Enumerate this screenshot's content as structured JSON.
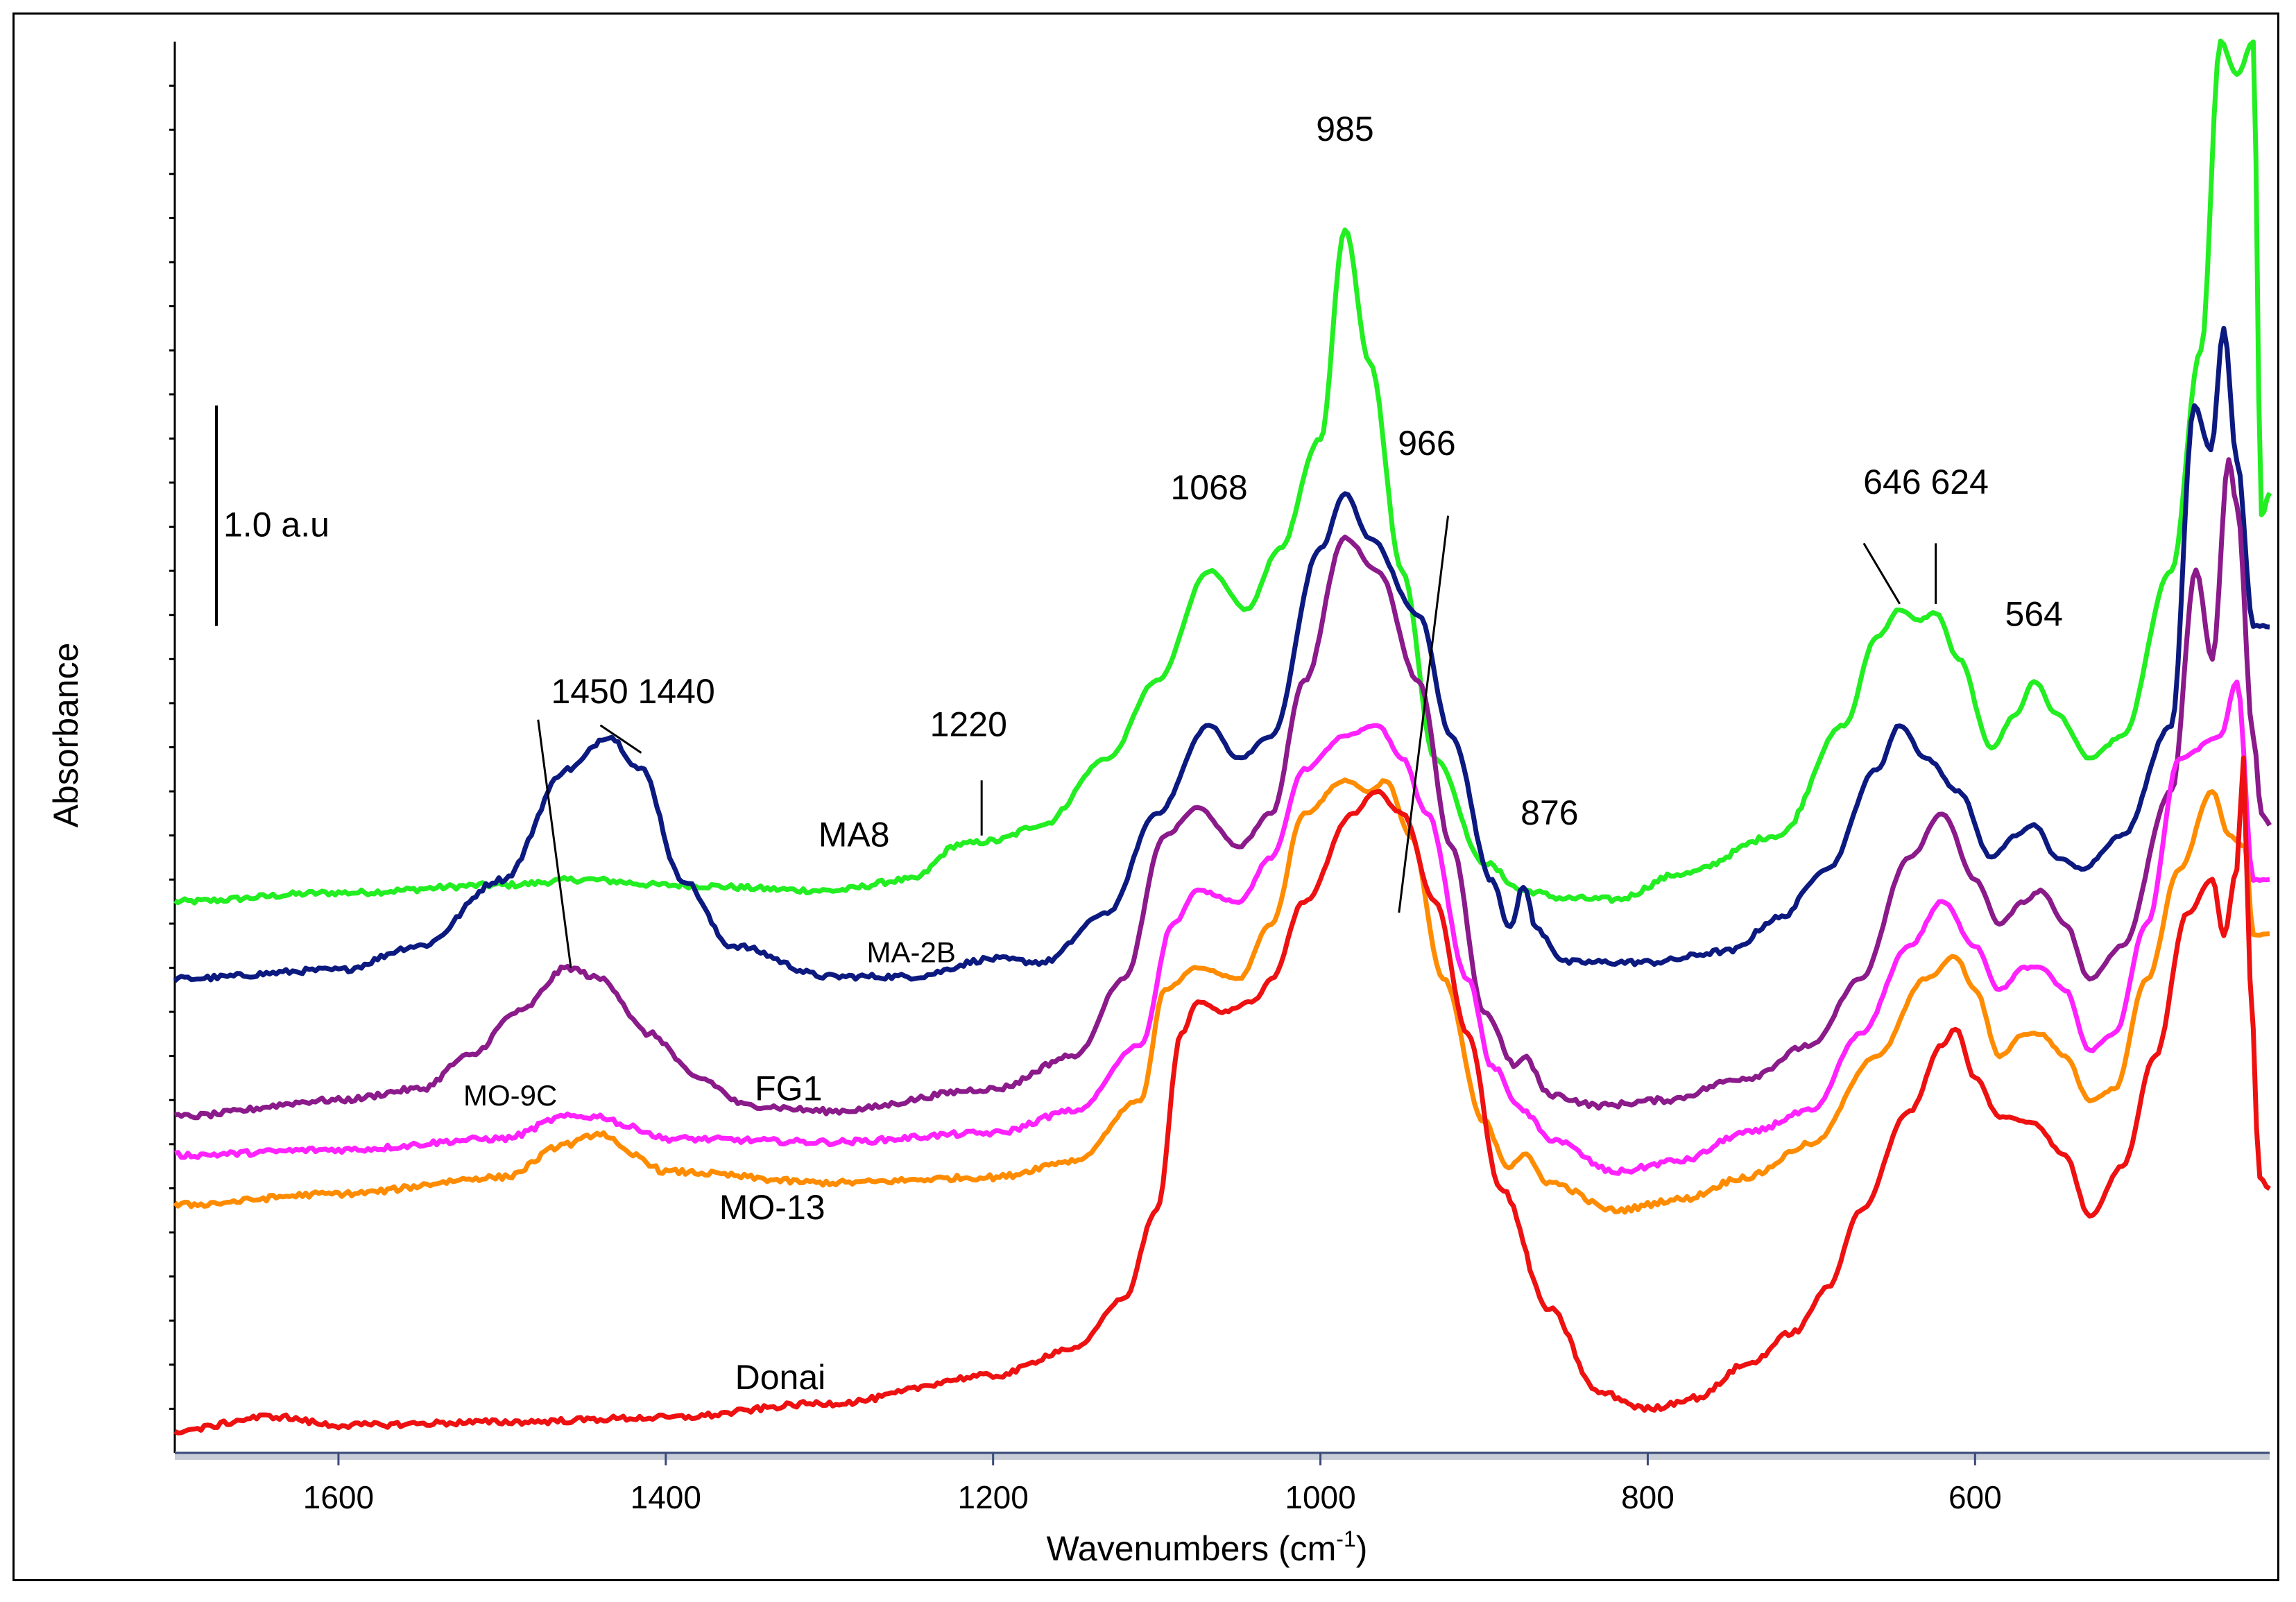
{
  "chart_data": {
    "type": "line",
    "title": "",
    "xlabel": "Wavenumbers (cm",
    "xlabel_sup": "-1",
    "xlabel_close": ")",
    "ylabel": "Absorbance",
    "x_reversed": true,
    "xlim": [
      1700,
      420
    ],
    "ylim": [
      0,
      12.8
    ],
    "x_ticks": [
      {
        "value": 1600,
        "label": "1600"
      },
      {
        "value": 1400,
        "label": "1400"
      },
      {
        "value": 1200,
        "label": "1200"
      },
      {
        "value": 1000,
        "label": "1000"
      },
      {
        "value": 800,
        "label": "800"
      },
      {
        "value": 600,
        "label": "600"
      }
    ],
    "scale_bar": {
      "label": "1.0  a.u",
      "from": 7.5,
      "to": 9.5
    },
    "series": [
      {
        "name": "MA8",
        "color": "#22ee22",
        "points": [
          [
            1700,
            5.0
          ],
          [
            1600,
            5.08
          ],
          [
            1500,
            5.15
          ],
          [
            1450,
            5.2
          ],
          [
            1400,
            5.15
          ],
          [
            1300,
            5.1
          ],
          [
            1250,
            5.2
          ],
          [
            1220,
            5.52
          ],
          [
            1200,
            5.55
          ],
          [
            1170,
            5.7
          ],
          [
            1130,
            6.3
          ],
          [
            1100,
            7.0
          ],
          [
            1068,
            8.0
          ],
          [
            1045,
            7.65
          ],
          [
            1025,
            8.2
          ],
          [
            1000,
            9.2
          ],
          [
            985,
            11.1
          ],
          [
            970,
            9.9
          ],
          [
            950,
            8.0
          ],
          [
            930,
            6.3
          ],
          [
            900,
            5.35
          ],
          [
            876,
            5.1
          ],
          [
            850,
            5.03
          ],
          [
            820,
            5.02
          ],
          [
            780,
            5.25
          ],
          [
            720,
            5.6
          ],
          [
            680,
            6.6
          ],
          [
            660,
            7.4
          ],
          [
            646,
            7.65
          ],
          [
            635,
            7.55
          ],
          [
            624,
            7.62
          ],
          [
            610,
            7.2
          ],
          [
            590,
            6.4
          ],
          [
            575,
            6.7
          ],
          [
            564,
            7.0
          ],
          [
            550,
            6.7
          ],
          [
            530,
            6.3
          ],
          [
            510,
            6.5
          ],
          [
            480,
            8.0
          ],
          [
            462,
            10.0
          ],
          [
            450,
            12.8
          ],
          [
            440,
            12.5
          ],
          [
            430,
            12.8
          ],
          [
            425,
            8.5
          ],
          [
            420,
            8.7
          ]
        ]
      },
      {
        "name": "MA-2B",
        "color": "#0c1a80",
        "points": [
          [
            1700,
            4.3
          ],
          [
            1600,
            4.38
          ],
          [
            1550,
            4.6
          ],
          [
            1500,
            5.2
          ],
          [
            1460,
            6.2
          ],
          [
            1435,
            6.5
          ],
          [
            1415,
            6.2
          ],
          [
            1390,
            5.2
          ],
          [
            1360,
            4.6
          ],
          [
            1300,
            4.32
          ],
          [
            1250,
            4.32
          ],
          [
            1200,
            4.48
          ],
          [
            1170,
            4.45
          ],
          [
            1130,
            4.9
          ],
          [
            1100,
            5.8
          ],
          [
            1068,
            6.6
          ],
          [
            1050,
            6.3
          ],
          [
            1030,
            6.5
          ],
          [
            1000,
            8.2
          ],
          [
            985,
            8.7
          ],
          [
            970,
            8.3
          ],
          [
            940,
            7.6
          ],
          [
            920,
            6.5
          ],
          [
            895,
            5.2
          ],
          [
            884,
            4.75
          ],
          [
            876,
            5.15
          ],
          [
            868,
            4.75
          ],
          [
            850,
            4.45
          ],
          [
            800,
            4.45
          ],
          [
            750,
            4.55
          ],
          [
            720,
            4.85
          ],
          [
            690,
            5.3
          ],
          [
            660,
            6.2
          ],
          [
            646,
            6.6
          ],
          [
            630,
            6.3
          ],
          [
            610,
            6.0
          ],
          [
            590,
            5.4
          ],
          [
            575,
            5.6
          ],
          [
            564,
            5.7
          ],
          [
            550,
            5.4
          ],
          [
            535,
            5.3
          ],
          [
            510,
            5.6
          ],
          [
            480,
            6.6
          ],
          [
            466,
            9.5
          ],
          [
            456,
            9.1
          ],
          [
            448,
            10.2
          ],
          [
            440,
            9.0
          ],
          [
            430,
            7.5
          ],
          [
            420,
            7.5
          ]
        ]
      },
      {
        "name": "FG1",
        "color": "#8b1a8b",
        "points": [
          [
            1700,
            3.05
          ],
          [
            1600,
            3.2
          ],
          [
            1550,
            3.3
          ],
          [
            1520,
            3.6
          ],
          [
            1490,
            4.0
          ],
          [
            1460,
            4.4
          ],
          [
            1440,
            4.3
          ],
          [
            1410,
            3.8
          ],
          [
            1380,
            3.4
          ],
          [
            1350,
            3.15
          ],
          [
            1300,
            3.1
          ],
          [
            1200,
            3.3
          ],
          [
            1150,
            3.6
          ],
          [
            1120,
            4.3
          ],
          [
            1095,
            5.6
          ],
          [
            1075,
            5.85
          ],
          [
            1050,
            5.5
          ],
          [
            1030,
            5.8
          ],
          [
            1010,
            7.0
          ],
          [
            985,
            8.3
          ],
          [
            965,
            8.0
          ],
          [
            940,
            7.0
          ],
          [
            920,
            5.5
          ],
          [
            900,
            4.0
          ],
          [
            880,
            3.5
          ],
          [
            876,
            3.6
          ],
          [
            860,
            3.25
          ],
          [
            830,
            3.15
          ],
          [
            790,
            3.2
          ],
          [
            740,
            3.4
          ],
          [
            700,
            3.7
          ],
          [
            670,
            4.3
          ],
          [
            640,
            5.4
          ],
          [
            620,
            5.8
          ],
          [
            600,
            5.2
          ],
          [
            585,
            4.8
          ],
          [
            570,
            5.0
          ],
          [
            560,
            5.1
          ],
          [
            545,
            4.8
          ],
          [
            530,
            4.3
          ],
          [
            510,
            4.6
          ],
          [
            480,
            6.0
          ],
          [
            465,
            8.0
          ],
          [
            455,
            7.2
          ],
          [
            445,
            9.0
          ],
          [
            440,
            8.6
          ],
          [
            430,
            6.5
          ],
          [
            425,
            5.8
          ],
          [
            420,
            5.7
          ]
        ]
      },
      {
        "name": "MO-9C",
        "color": "#ff22ff",
        "points": [
          [
            1700,
            2.7
          ],
          [
            1600,
            2.75
          ],
          [
            1500,
            2.85
          ],
          [
            1460,
            3.05
          ],
          [
            1440,
            3.05
          ],
          [
            1420,
            2.95
          ],
          [
            1400,
            2.85
          ],
          [
            1300,
            2.82
          ],
          [
            1200,
            2.9
          ],
          [
            1150,
            3.1
          ],
          [
            1110,
            3.7
          ],
          [
            1090,
            4.8
          ],
          [
            1075,
            5.1
          ],
          [
            1050,
            5.0
          ],
          [
            1030,
            5.4
          ],
          [
            1010,
            6.2
          ],
          [
            985,
            6.5
          ],
          [
            965,
            6.6
          ],
          [
            950,
            6.3
          ],
          [
            935,
            5.8
          ],
          [
            910,
            4.3
          ],
          [
            895,
            3.5
          ],
          [
            876,
            3.1
          ],
          [
            860,
            2.85
          ],
          [
            820,
            2.55
          ],
          [
            780,
            2.65
          ],
          [
            740,
            2.9
          ],
          [
            700,
            3.1
          ],
          [
            670,
            3.8
          ],
          [
            640,
            4.6
          ],
          [
            620,
            5.0
          ],
          [
            600,
            4.6
          ],
          [
            585,
            4.2
          ],
          [
            570,
            4.4
          ],
          [
            560,
            4.4
          ],
          [
            545,
            4.2
          ],
          [
            530,
            3.65
          ],
          [
            515,
            3.8
          ],
          [
            495,
            4.8
          ],
          [
            475,
            6.3
          ],
          [
            450,
            6.5
          ],
          [
            440,
            7.0
          ],
          [
            430,
            5.2
          ],
          [
            420,
            5.2
          ]
        ]
      },
      {
        "name": "MO-13",
        "color": "#ff8c00",
        "points": [
          [
            1700,
            2.25
          ],
          [
            1600,
            2.35
          ],
          [
            1500,
            2.5
          ],
          [
            1460,
            2.8
          ],
          [
            1440,
            2.9
          ],
          [
            1420,
            2.7
          ],
          [
            1400,
            2.55
          ],
          [
            1300,
            2.45
          ],
          [
            1200,
            2.5
          ],
          [
            1150,
            2.65
          ],
          [
            1110,
            3.2
          ],
          [
            1095,
            4.2
          ],
          [
            1075,
            4.4
          ],
          [
            1050,
            4.3
          ],
          [
            1030,
            4.8
          ],
          [
            1010,
            5.8
          ],
          [
            985,
            6.1
          ],
          [
            970,
            6.0
          ],
          [
            960,
            6.1
          ],
          [
            945,
            5.6
          ],
          [
            925,
            4.3
          ],
          [
            900,
            3.0
          ],
          [
            885,
            2.6
          ],
          [
            876,
            2.7
          ],
          [
            860,
            2.45
          ],
          [
            820,
            2.2
          ],
          [
            780,
            2.3
          ],
          [
            740,
            2.5
          ],
          [
            700,
            2.8
          ],
          [
            660,
            3.6
          ],
          [
            630,
            4.3
          ],
          [
            612,
            4.5
          ],
          [
            600,
            4.2
          ],
          [
            585,
            3.6
          ],
          [
            570,
            3.8
          ],
          [
            560,
            3.8
          ],
          [
            545,
            3.6
          ],
          [
            530,
            3.2
          ],
          [
            515,
            3.3
          ],
          [
            495,
            4.3
          ],
          [
            475,
            5.3
          ],
          [
            455,
            6.0
          ],
          [
            445,
            5.6
          ],
          [
            435,
            5.5
          ],
          [
            430,
            4.7
          ],
          [
            420,
            4.7
          ]
        ]
      },
      {
        "name": "Donai",
        "color": "#ee1111",
        "points": [
          [
            1700,
            0.2
          ],
          [
            1640,
            0.33
          ],
          [
            1600,
            0.25
          ],
          [
            1500,
            0.28
          ],
          [
            1400,
            0.32
          ],
          [
            1300,
            0.45
          ],
          [
            1200,
            0.7
          ],
          [
            1150,
            0.95
          ],
          [
            1120,
            1.4
          ],
          [
            1100,
            2.2
          ],
          [
            1085,
            3.8
          ],
          [
            1075,
            4.1
          ],
          [
            1060,
            4.0
          ],
          [
            1040,
            4.1
          ],
          [
            1030,
            4.3
          ],
          [
            1010,
            5.0
          ],
          [
            980,
            5.8
          ],
          [
            966,
            6.0
          ],
          [
            950,
            5.8
          ],
          [
            930,
            5.0
          ],
          [
            910,
            3.8
          ],
          [
            890,
            2.4
          ],
          [
            860,
            1.3
          ],
          [
            830,
            0.55
          ],
          [
            800,
            0.4
          ],
          [
            770,
            0.5
          ],
          [
            740,
            0.8
          ],
          [
            710,
            1.1
          ],
          [
            690,
            1.5
          ],
          [
            670,
            2.2
          ],
          [
            640,
            3.1
          ],
          [
            620,
            3.7
          ],
          [
            612,
            3.85
          ],
          [
            600,
            3.4
          ],
          [
            585,
            3.05
          ],
          [
            565,
            3.0
          ],
          [
            545,
            2.7
          ],
          [
            530,
            2.15
          ],
          [
            510,
            2.6
          ],
          [
            490,
            3.6
          ],
          [
            470,
            4.9
          ],
          [
            455,
            5.2
          ],
          [
            448,
            4.7
          ],
          [
            440,
            5.3
          ],
          [
            436,
            6.3
          ],
          [
            432,
            4.3
          ],
          [
            426,
            2.5
          ],
          [
            420,
            2.4
          ]
        ]
      }
    ],
    "series_labels": [
      {
        "text": "MA8",
        "x": 1285,
        "y": 5.5
      },
      {
        "text": "MA-2B",
        "x": 1250,
        "y": 4.45
      },
      {
        "text": "FG1",
        "x": 1325,
        "y": 3.2
      },
      {
        "text": "MO-9C",
        "x": 1495,
        "y": 3.15
      },
      {
        "text": "MO-13",
        "x": 1335,
        "y": 2.12
      },
      {
        "text": "Donai",
        "x": 1330,
        "y": 0.58
      }
    ],
    "annotations": [
      {
        "text": "985",
        "x": 985,
        "y": 11.9,
        "line": null
      },
      {
        "text": "1068",
        "x": 1068,
        "y": 8.65,
        "line": null
      },
      {
        "text": "1220",
        "x": 1215,
        "y": 6.5,
        "line": [
          1207,
          6.1,
          1207,
          5.6
        ]
      },
      {
        "text": "966",
        "x": 935,
        "y": 9.05,
        "line": [
          922,
          8.5,
          952,
          4.9
        ]
      },
      {
        "text": "876",
        "x": 860,
        "y": 5.7,
        "line": null
      },
      {
        "text": "1450 1440",
        "x": 1420,
        "y": 6.8,
        "line": [
          1415,
          6.35,
          1440,
          6.6
        ]
      },
      {
        "text": "646  624",
        "x": 630,
        "y": 8.7,
        "line": [
          646,
          7.7,
          668,
          8.25
        ]
      },
      {
        "text": "",
        "x": 0,
        "y": 0,
        "line": [
          624,
          7.7,
          624,
          8.25
        ]
      },
      {
        "text": "",
        "x": 0,
        "y": 0,
        "line": [
          1458,
          4.4,
          1478,
          6.65
        ]
      },
      {
        "text": "564",
        "x": 564,
        "y": 7.5,
        "line": null
      }
    ]
  }
}
